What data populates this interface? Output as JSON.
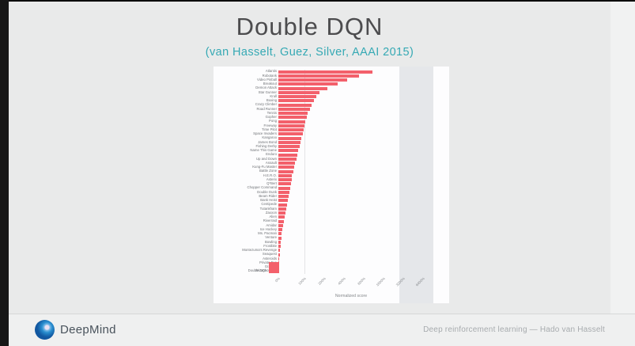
{
  "slide": {
    "title": "Double DQN",
    "subtitle": "(van Hasselt, Guez, Silver, AAAI 2015)"
  },
  "footer": {
    "brand": "DeepMind",
    "credit": "Deep reinforcement learning — Hado van Hasselt"
  },
  "colors": {
    "bar": "#f3606b",
    "subtitle_teal": "#35a9b4",
    "title_gray": "#4c4c4e",
    "slide_background": "#e9eaea",
    "panel_background": "#fdfdfe"
  },
  "chart_data": {
    "type": "bar",
    "orientation": "horizontal",
    "title": "",
    "xlabel": "Normalized score",
    "x_scale": "linear from 0 to 100%, log2 above 100%",
    "xlim": [
      0,
      6400
    ],
    "tick_labels": [
      "0%",
      "100%",
      "200%",
      "400%",
      "800%",
      "1600%",
      "3200%",
      "6400%"
    ],
    "tick_values": [
      0,
      100,
      200,
      400,
      800,
      1600,
      3200,
      6400
    ],
    "grid": "vertical reference line at 100%",
    "legend_position": "bottom-left",
    "sorted": "descending",
    "categories": [
      "Atlantis",
      "Robotank",
      "Video Pinball",
      "Breakout",
      "Demon Attack",
      "Star Gunner",
      "Krull",
      "Boxing",
      "Crazy Climber",
      "Road Runner",
      "Tennis",
      "Gopher",
      "Pong",
      "Freeway",
      "Time Pilot",
      "Space Invaders",
      "Kangaroo",
      "James Bond",
      "Fishing Derby",
      "Name This Game",
      "Enduro",
      "Up and Down",
      "Assault",
      "Kung-Fu Master",
      "Battle Zone",
      "H.E.R.O.",
      "Asterix",
      "Q*Bert",
      "Chopper Command",
      "Double Dunk",
      "Beam Rider",
      "Bank Heist",
      "Centipede",
      "Tutankham",
      "Zaxxon",
      "Alien",
      "Riverraid",
      "Amidar",
      "Ice Hockey",
      "Ms. Pacman",
      "Venture",
      "Bowling",
      "Frostbite",
      "Montezuma's Revenge",
      "Seaquest",
      "Asteroids",
      "Private Eye",
      "Gravitar",
      "Wizard of Wor"
    ],
    "series": [
      {
        "name": "Double DQN",
        "color": "#f3606b",
        "values": [
          1100,
          680,
          450,
          320,
          225,
          170,
          150,
          140,
          130,
          120,
          112,
          108,
          104,
          100,
          97,
          93,
          89,
          85,
          81,
          77,
          73,
          69,
          65,
          61,
          57,
          53,
          50,
          47,
          44,
          41,
          38,
          35,
          32,
          29,
          26,
          23,
          20,
          17,
          15,
          13,
          11,
          9,
          8,
          6,
          5,
          4,
          3,
          2,
          1
        ]
      }
    ]
  }
}
